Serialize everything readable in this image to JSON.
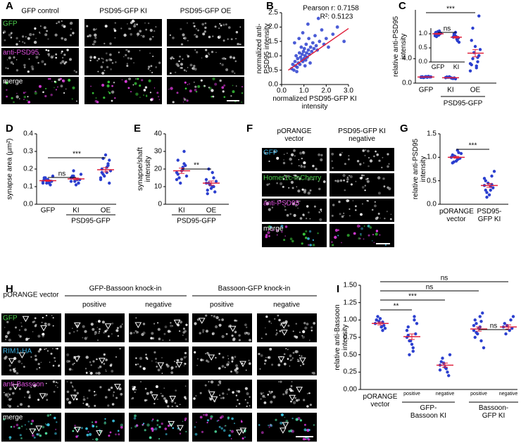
{
  "panel_labels": [
    "A",
    "B",
    "C",
    "D",
    "E",
    "F",
    "G",
    "H",
    "I"
  ],
  "panel_A": {
    "columns": [
      "GFP control",
      "PSD95-GFP KI",
      "PSD95-GFP OE"
    ],
    "rows": [
      "GFP",
      "anti-PSD95",
      "merge"
    ]
  },
  "panel_F": {
    "columns": [
      "pORANGE vector",
      "PSD95-GFP KI negative"
    ],
    "rows": [
      "GFP",
      "Homer1c-mCherry",
      "anti-PSD95",
      "merge"
    ]
  },
  "panel_H": {
    "vector": "pORANGE vector",
    "groups": [
      "GFP-Bassoon knock-in",
      "Bassoon-GFP knock-in"
    ],
    "subcolumns": [
      "positive",
      "negative",
      "positive",
      "negative"
    ],
    "rows": [
      "GFP",
      "RIM1-HA",
      "anti-Bassoon",
      "merge"
    ]
  },
  "chart_data": [
    {
      "type": "scatter",
      "color": "#2b3fcf",
      "line_color": "#e0203c",
      "x": [
        0.45,
        0.5,
        0.55,
        0.6,
        0.62,
        0.65,
        0.7,
        0.72,
        0.75,
        0.8,
        0.82,
        0.85,
        0.88,
        0.9,
        0.92,
        0.95,
        0.98,
        1.0,
        1.02,
        1.05,
        1.08,
        1.1,
        1.12,
        1.15,
        1.2,
        1.22,
        1.25,
        1.3,
        1.35,
        1.4,
        1.45,
        1.5,
        1.55,
        1.6,
        1.7,
        1.8,
        1.9,
        2.0,
        2.1,
        2.3,
        2.5,
        2.8,
        0.58,
        0.68,
        0.78,
        0.95,
        1.05,
        1.18,
        1.28,
        1.65
      ],
      "y": [
        0.55,
        0.7,
        0.5,
        0.8,
        0.65,
        1.0,
        0.6,
        0.9,
        0.75,
        1.1,
        0.7,
        0.95,
        1.3,
        0.85,
        1.05,
        0.8,
        1.15,
        0.9,
        1.25,
        1.0,
        0.85,
        1.4,
        1.1,
        0.95,
        1.2,
        1.6,
        1.05,
        1.3,
        1.15,
        1.45,
        1.25,
        1.7,
        1.35,
        1.2,
        1.5,
        1.9,
        1.4,
        1.6,
        1.3,
        1.75,
        2.0,
        1.5,
        1.45,
        0.45,
        1.6,
        1.8,
        0.65,
        2.1,
        0.75,
        2.3
      ],
      "fit_line": {
        "x": [
          0.3,
          3.0
        ],
        "y": [
          0.5,
          1.95
        ]
      },
      "annotations": [
        "Pearson r: 0.7158",
        "R²: 0.5123"
      ],
      "x_label": "normalized PSD95-GFP KI intensity",
      "y_label": "normalized anti-PSD95 intensity",
      "xlim": [
        0,
        3
      ],
      "ylim": [
        0,
        2.5
      ],
      "xticks": [
        {
          "value": 0,
          "label": "0.0"
        },
        {
          "value": 1,
          "label": "1.0"
        },
        {
          "value": 2,
          "label": "2.0"
        },
        {
          "value": 3,
          "label": "3.0"
        }
      ],
      "yticks": [
        {
          "value": 0,
          "label": "0.0"
        },
        0.5,
        {
          "value": 1,
          "label": "1.0"
        },
        1.5,
        {
          "value": 2,
          "label": "2.0"
        },
        2.5
      ]
    },
    {
      "type": "dot",
      "color": "#2b3fcf",
      "mean_color": "#e0203c",
      "categories": [
        "GFP",
        "KI",
        "OE"
      ],
      "values": [
        [
          1.0,
          0.95,
          1.05,
          1.1,
          0.9,
          1.0,
          0.98,
          1.02,
          1.08,
          0.93,
          1.0,
          0.97
        ],
        [
          0.9,
          0.8,
          1.0,
          0.75,
          0.95,
          0.85,
          1.05,
          0.7,
          0.9,
          0.88,
          0.82,
          0.98
        ],
        [
          2.0,
          2.5,
          3.0,
          3.5,
          4.0,
          4.5,
          5.0,
          5.5,
          6.0,
          3.2,
          2.8,
          7.0,
          4.2,
          9.0,
          11.0
        ]
      ],
      "means": [
        1.0,
        0.88,
        4.9
      ],
      "sems": [
        0.02,
        0.03,
        0.6
      ],
      "ylim": [
        0,
        12
      ],
      "yticks": [
        {
          "value": 0,
          "label": "0.0"
        },
        {
          "value": 4,
          "label": "4.0"
        }
      ],
      "y_label": "relative anti-PSD95 intensity",
      "annotations": [
        "***"
      ],
      "group_labels": [
        "PSD95-GFP"
      ]
    },
    {
      "type": "dot",
      "color": "#2b3fcf",
      "mean_color": "#e0203c",
      "categories": [
        "GFP",
        "KI"
      ],
      "values": [
        [
          1.0,
          0.95,
          1.05,
          1.1,
          0.9,
          1.0,
          0.98,
          1.02,
          1.08,
          0.93,
          1.0,
          0.97
        ],
        [
          0.9,
          0.8,
          1.0,
          0.75,
          0.95,
          0.85,
          1.05,
          0.7,
          0.9,
          0.88,
          0.82,
          0.98
        ]
      ],
      "means": [
        1.0,
        0.88
      ],
      "sems": [
        0.02,
        0.03
      ],
      "ylim": [
        0,
        1.2
      ],
      "yticks": [
        {
          "value": 0,
          "label": "0.0"
        },
        0.5,
        {
          "value": 1,
          "label": "1.0"
        }
      ],
      "annotations": [
        "ns"
      ]
    },
    {
      "type": "dot",
      "color": "#2b3fcf",
      "mean_color": "#e0203c",
      "categories": [
        "GFP",
        "KI",
        "OE"
      ],
      "values": [
        [
          0.12,
          0.13,
          0.14,
          0.11,
          0.15,
          0.13,
          0.12,
          0.16,
          0.14,
          0.13,
          0.12,
          0.15,
          0.13,
          0.14
        ],
        [
          0.13,
          0.14,
          0.15,
          0.12,
          0.16,
          0.14,
          0.13,
          0.17,
          0.11,
          0.15,
          0.14,
          0.16,
          0.12,
          0.19
        ],
        [
          0.15,
          0.18,
          0.2,
          0.22,
          0.17,
          0.25,
          0.16,
          0.19,
          0.28,
          0.14,
          0.21,
          0.18,
          0.23,
          0.26,
          0.12
        ]
      ],
      "means": [
        0.134,
        0.144,
        0.196
      ],
      "sems": [
        0.004,
        0.005,
        0.012
      ],
      "ylim": [
        0,
        0.4
      ],
      "yticks": [
        {
          "value": 0,
          "label": "0.0"
        },
        0.1,
        0.2,
        0.3,
        0.4
      ],
      "y_label": "synapse area (µm²)",
      "annotations": [
        "ns",
        "***"
      ],
      "group_labels": [
        "PSD95-GFP"
      ]
    },
    {
      "type": "dot",
      "color": "#2b3fcf",
      "mean_color": "#e0203c",
      "categories": [
        "KI",
        "OE"
      ],
      "values": [
        [
          18,
          20,
          25,
          30,
          15,
          22,
          12,
          16,
          19,
          14,
          21,
          17,
          23
        ],
        [
          12,
          10,
          8,
          15,
          20,
          7,
          11,
          13,
          9,
          14,
          18,
          6,
          10,
          12
        ]
      ],
      "means": [
        19,
        12
      ],
      "sems": [
        1.5,
        1.2
      ],
      "ylim": [
        0,
        40
      ],
      "yticks": [
        0,
        10,
        20,
        30,
        40
      ],
      "y_label": "synapse/shaft intensity",
      "annotations": [
        "**"
      ],
      "group_labels": [
        "PSD95-GFP"
      ]
    },
    {
      "type": "dot",
      "color": "#2b3fcf",
      "mean_color": "#e0203c",
      "categories": [
        "pORANGE vector",
        "PSD95-GFP KI"
      ],
      "values": [
        [
          1.0,
          0.95,
          1.05,
          1.1,
          0.9,
          0.98,
          1.02,
          1.08,
          0.92,
          1.0,
          1.15,
          0.88,
          0.97,
          1.03
        ],
        [
          0.4,
          0.3,
          0.5,
          0.6,
          0.25,
          0.35,
          0.45,
          0.7,
          0.2,
          0.55,
          0.38,
          0.3,
          0.42,
          0.15
        ]
      ],
      "means": [
        1.0,
        0.4
      ],
      "sems": [
        0.02,
        0.04
      ],
      "ylim": [
        0,
        1.5
      ],
      "yticks": [
        {
          "value": 0,
          "label": "0.0"
        },
        0.5,
        {
          "value": 1,
          "label": "1.0"
        },
        1.5
      ],
      "y_label": "relative anti-PSD95 intensity",
      "annotations": [
        "***"
      ]
    },
    {
      "type": "dot",
      "color": "#2b3fcf",
      "mean_color": "#e0203c",
      "categories": [
        "pORANGE vector",
        "positive",
        "negative",
        "positive",
        "negative"
      ],
      "values": [
        [
          0.95,
          0.9,
          1.0,
          0.85,
          1.05,
          0.92,
          0.98,
          0.88,
          1.02,
          0.95,
          0.9,
          1.0,
          0.97
        ],
        [
          0.75,
          0.6,
          0.9,
          1.0,
          0.5,
          0.8,
          0.7,
          0.95,
          0.65,
          0.85,
          0.55,
          0.78,
          1.05,
          0.7
        ],
        [
          0.35,
          0.3,
          0.4,
          0.25,
          0.45,
          0.2,
          0.38,
          0.5,
          0.32,
          0.28
        ],
        [
          0.85,
          0.9,
          1.0,
          0.7,
          0.95,
          1.1,
          0.8,
          0.6,
          0.88,
          0.92,
          1.05,
          0.75,
          0.98,
          0.82
        ],
        [
          0.9,
          0.85,
          0.95,
          1.0,
          0.8,
          0.88,
          0.92,
          1.05
        ]
      ],
      "means": [
        0.95,
        0.76,
        0.35,
        0.87,
        0.9
      ],
      "sems": [
        0.02,
        0.04,
        0.03,
        0.03,
        0.03
      ],
      "ylim": [
        0,
        1.5
      ],
      "yticks": [
        {
          "value": 0,
          "label": "0.00"
        },
        0.25,
        {
          "value": 0.5,
          "label": "0.50"
        },
        0.75,
        {
          "value": 1,
          "label": "1.00"
        },
        1.25,
        {
          "value": 1.5,
          "label": "1.50"
        }
      ],
      "y_label": "relative anti-Bassoon intensity",
      "annotations": [
        "ns",
        "ns",
        "***",
        "**",
        "ns"
      ],
      "group_labels": [
        "GFP-Bassoon KI",
        "Bassoon-GFP KI"
      ]
    }
  ]
}
